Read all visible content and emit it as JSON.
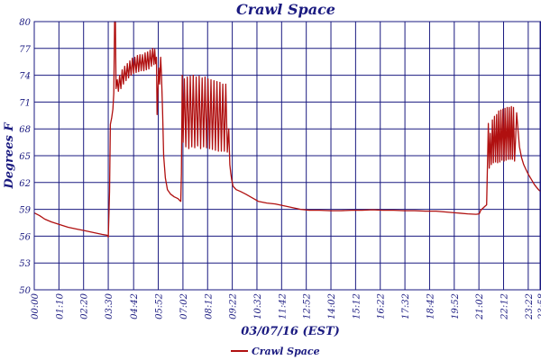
{
  "colors": {
    "line": "#b01010",
    "grid": "#1a1a80",
    "text": "#1a1a80",
    "background": "#ffffff"
  },
  "chart_data": {
    "type": "line",
    "title": "Crawl Space",
    "xlabel": "03/07/16 (EST)",
    "ylabel": "Degrees F",
    "xlim": [
      0,
      23.97
    ],
    "ylim": [
      50,
      80
    ],
    "grid": true,
    "legend_position": "bottom-center",
    "y_ticks": [
      "50",
      "53",
      "56",
      "59",
      "62",
      "65",
      "68",
      "71",
      "74",
      "77",
      "80"
    ],
    "x_ticks": [
      {
        "label": "00:00",
        "h": 0
      },
      {
        "label": "01:10",
        "h": 1.1667
      },
      {
        "label": "02:20",
        "h": 2.3333
      },
      {
        "label": "03:30",
        "h": 3.5
      },
      {
        "label": "04:42",
        "h": 4.7
      },
      {
        "label": "05:52",
        "h": 5.8667
      },
      {
        "label": "07:02",
        "h": 7.0333
      },
      {
        "label": "08:12",
        "h": 8.2
      },
      {
        "label": "09:22",
        "h": 9.3667
      },
      {
        "label": "10:32",
        "h": 10.5333
      },
      {
        "label": "11:42",
        "h": 11.7
      },
      {
        "label": "12:52",
        "h": 12.8667
      },
      {
        "label": "14:02",
        "h": 14.0333
      },
      {
        "label": "15:12",
        "h": 15.2
      },
      {
        "label": "16:22",
        "h": 16.3667
      },
      {
        "label": "17:32",
        "h": 17.5333
      },
      {
        "label": "18:42",
        "h": 18.7
      },
      {
        "label": "19:52",
        "h": 19.8667
      },
      {
        "label": "21:02",
        "h": 21.0333
      },
      {
        "label": "22:12",
        "h": 22.2
      },
      {
        "label": "23:22",
        "h": 23.3667
      },
      {
        "label": "23:58",
        "h": 23.9667
      }
    ],
    "series": [
      {
        "name": "Crawl Space",
        "points": [
          [
            0.0,
            58.6
          ],
          [
            0.25,
            58.3
          ],
          [
            0.5,
            57.9
          ],
          [
            0.8,
            57.6
          ],
          [
            1.2,
            57.3
          ],
          [
            1.6,
            57.0
          ],
          [
            2.0,
            56.8
          ],
          [
            2.4,
            56.6
          ],
          [
            2.8,
            56.4
          ],
          [
            3.2,
            56.2
          ],
          [
            3.45,
            56.1
          ],
          [
            3.5,
            55.9
          ],
          [
            3.56,
            61.0
          ],
          [
            3.6,
            68.5
          ],
          [
            3.66,
            69.2
          ],
          [
            3.72,
            70.2
          ],
          [
            3.76,
            72.0
          ],
          [
            3.8,
            80.0
          ],
          [
            3.84,
            80.0
          ],
          [
            3.87,
            72.5
          ],
          [
            3.93,
            73.5
          ],
          [
            3.98,
            72.2
          ],
          [
            4.04,
            74.0
          ],
          [
            4.1,
            72.5
          ],
          [
            4.16,
            74.6
          ],
          [
            4.22,
            73.0
          ],
          [
            4.28,
            75.0
          ],
          [
            4.34,
            73.4
          ],
          [
            4.4,
            75.3
          ],
          [
            4.46,
            73.7
          ],
          [
            4.52,
            75.6
          ],
          [
            4.58,
            74.0
          ],
          [
            4.64,
            75.9
          ],
          [
            4.7,
            74.2
          ],
          [
            4.76,
            76.0
          ],
          [
            4.82,
            74.3
          ],
          [
            4.88,
            76.2
          ],
          [
            4.94,
            74.4
          ],
          [
            5.0,
            76.3
          ],
          [
            5.06,
            74.5
          ],
          [
            5.12,
            76.3
          ],
          [
            5.18,
            74.5
          ],
          [
            5.24,
            76.5
          ],
          [
            5.3,
            74.6
          ],
          [
            5.36,
            76.6
          ],
          [
            5.42,
            74.7
          ],
          [
            5.48,
            76.8
          ],
          [
            5.54,
            75.0
          ],
          [
            5.6,
            77.0
          ],
          [
            5.66,
            75.2
          ],
          [
            5.7,
            76.9
          ],
          [
            5.74,
            75.3
          ],
          [
            5.78,
            76.0
          ],
          [
            5.81,
            69.6
          ],
          [
            5.85,
            72.5
          ],
          [
            5.89,
            74.8
          ],
          [
            5.93,
            73.0
          ],
          [
            5.98,
            76.0
          ],
          [
            6.02,
            74.0
          ],
          [
            6.07,
            70.0
          ],
          [
            6.12,
            65.0
          ],
          [
            6.2,
            62.5
          ],
          [
            6.3,
            61.2
          ],
          [
            6.45,
            60.7
          ],
          [
            6.62,
            60.4
          ],
          [
            6.8,
            60.2
          ],
          [
            6.88,
            60.0
          ],
          [
            6.93,
            59.9
          ],
          [
            6.96,
            63.0
          ],
          [
            7.0,
            74.0
          ],
          [
            7.04,
            66.5
          ],
          [
            7.1,
            73.6
          ],
          [
            7.17,
            66.0
          ],
          [
            7.24,
            73.8
          ],
          [
            7.31,
            65.8
          ],
          [
            7.38,
            73.9
          ],
          [
            7.45,
            66.0
          ],
          [
            7.52,
            74.0
          ],
          [
            7.59,
            65.9
          ],
          [
            7.66,
            73.8
          ],
          [
            7.73,
            66.1
          ],
          [
            7.8,
            73.9
          ],
          [
            7.87,
            65.8
          ],
          [
            7.94,
            73.7
          ],
          [
            8.01,
            66.0
          ],
          [
            8.08,
            73.8
          ],
          [
            8.15,
            65.9
          ],
          [
            8.22,
            73.6
          ],
          [
            8.29,
            65.8
          ],
          [
            8.36,
            73.5
          ],
          [
            8.43,
            65.7
          ],
          [
            8.5,
            73.4
          ],
          [
            8.57,
            65.6
          ],
          [
            8.64,
            73.3
          ],
          [
            8.71,
            65.5
          ],
          [
            8.78,
            73.2
          ],
          [
            8.85,
            65.5
          ],
          [
            8.92,
            73.0
          ],
          [
            8.99,
            65.5
          ],
          [
            9.06,
            73.0
          ],
          [
            9.13,
            65.4
          ],
          [
            9.2,
            68.0
          ],
          [
            9.25,
            64.0
          ],
          [
            9.3,
            63.0
          ],
          [
            9.34,
            62.3
          ],
          [
            9.4,
            61.6
          ],
          [
            9.55,
            61.2
          ],
          [
            9.75,
            61.0
          ],
          [
            10.0,
            60.7
          ],
          [
            10.3,
            60.3
          ],
          [
            10.6,
            59.9
          ],
          [
            11.0,
            59.7
          ],
          [
            11.4,
            59.6
          ],
          [
            11.8,
            59.4
          ],
          [
            12.2,
            59.2
          ],
          [
            12.6,
            59.0
          ],
          [
            13.0,
            58.9
          ],
          [
            13.5,
            58.9
          ],
          [
            14.0,
            58.85
          ],
          [
            14.5,
            58.85
          ],
          [
            15.0,
            58.9
          ],
          [
            15.5,
            58.9
          ],
          [
            16.0,
            58.95
          ],
          [
            16.5,
            58.9
          ],
          [
            17.0,
            58.9
          ],
          [
            17.5,
            58.85
          ],
          [
            18.0,
            58.85
          ],
          [
            18.5,
            58.8
          ],
          [
            19.0,
            58.8
          ],
          [
            19.5,
            58.7
          ],
          [
            20.0,
            58.6
          ],
          [
            20.5,
            58.5
          ],
          [
            20.9,
            58.45
          ],
          [
            21.05,
            58.5
          ],
          [
            21.12,
            58.9
          ],
          [
            21.3,
            59.3
          ],
          [
            21.4,
            59.5
          ],
          [
            21.48,
            68.6
          ],
          [
            21.52,
            63.6
          ],
          [
            21.57,
            67.5
          ],
          [
            21.62,
            64.0
          ],
          [
            21.67,
            69.0
          ],
          [
            21.72,
            64.2
          ],
          [
            21.77,
            69.4
          ],
          [
            21.82,
            64.3
          ],
          [
            21.87,
            69.6
          ],
          [
            21.92,
            64.2
          ],
          [
            21.97,
            70.0
          ],
          [
            22.02,
            64.3
          ],
          [
            22.07,
            70.1
          ],
          [
            22.12,
            64.5
          ],
          [
            22.17,
            70.2
          ],
          [
            22.22,
            64.4
          ],
          [
            22.27,
            70.3
          ],
          [
            22.32,
            64.5
          ],
          [
            22.37,
            70.4
          ],
          [
            22.42,
            64.6
          ],
          [
            22.47,
            70.4
          ],
          [
            22.52,
            64.6
          ],
          [
            22.57,
            70.5
          ],
          [
            22.62,
            64.6
          ],
          [
            22.67,
            70.4
          ],
          [
            22.72,
            64.4
          ],
          [
            22.77,
            67.0
          ],
          [
            22.82,
            69.8
          ],
          [
            22.88,
            68.0
          ],
          [
            22.95,
            66.0
          ],
          [
            23.05,
            64.8
          ],
          [
            23.15,
            64.0
          ],
          [
            23.25,
            63.5
          ],
          [
            23.35,
            63.0
          ],
          [
            23.45,
            62.6
          ],
          [
            23.55,
            62.2
          ],
          [
            23.65,
            61.8
          ],
          [
            23.75,
            61.5
          ],
          [
            23.85,
            61.2
          ],
          [
            23.95,
            61.0
          ]
        ]
      }
    ]
  }
}
